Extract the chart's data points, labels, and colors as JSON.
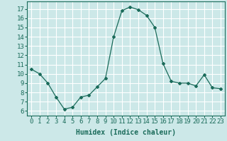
{
  "x": [
    0,
    1,
    2,
    3,
    4,
    5,
    6,
    7,
    8,
    9,
    10,
    11,
    12,
    13,
    14,
    15,
    16,
    17,
    18,
    19,
    20,
    21,
    22,
    23
  ],
  "y": [
    10.5,
    10.0,
    9.0,
    7.5,
    6.2,
    6.4,
    7.5,
    7.7,
    8.6,
    9.5,
    14.0,
    16.8,
    17.2,
    16.9,
    16.3,
    15.0,
    11.1,
    9.2,
    9.0,
    9.0,
    8.7,
    9.9,
    8.5,
    8.4
  ],
  "xlabel": "Humidex (Indice chaleur)",
  "ylim": [
    5.5,
    17.8
  ],
  "xlim": [
    -0.5,
    23.5
  ],
  "yticks": [
    6,
    7,
    8,
    9,
    10,
    11,
    12,
    13,
    14,
    15,
    16,
    17
  ],
  "xticks": [
    0,
    1,
    2,
    3,
    4,
    5,
    6,
    7,
    8,
    9,
    10,
    11,
    12,
    13,
    14,
    15,
    16,
    17,
    18,
    19,
    20,
    21,
    22,
    23
  ],
  "xtick_labels": [
    "0",
    "1",
    "2",
    "3",
    "4",
    "5",
    "6",
    "7",
    "8",
    "9",
    "10",
    "11",
    "12",
    "13",
    "14",
    "15",
    "16",
    "17",
    "18",
    "19",
    "20",
    "21",
    "22",
    "23"
  ],
  "line_color": "#1a6b5a",
  "marker": "D",
  "marker_size": 2,
  "bg_color": "#cce8e8",
  "grid_color": "#ffffff",
  "tick_label_color": "#1a6b5a",
  "xlabel_color": "#1a6b5a",
  "xlabel_fontsize": 7,
  "tick_fontsize": 6.5
}
